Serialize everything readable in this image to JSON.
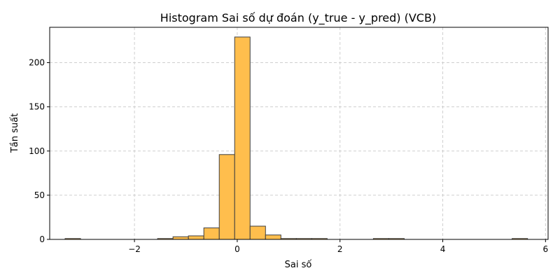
{
  "chart_data": {
    "type": "bar",
    "title": "Histogram Sai số dự đoán (y_true - y_pred) (VCB)",
    "xlabel": "Sai số",
    "ylabel": "Tần suất",
    "xlim": [
      -3.65,
      6.05
    ],
    "ylim": [
      0,
      240
    ],
    "xticks": [
      -2,
      0,
      2,
      4,
      6
    ],
    "xtick_labels": [
      "−2",
      "0",
      "2",
      "4",
      "6"
    ],
    "yticks": [
      0,
      50,
      100,
      150,
      200
    ],
    "ytick_labels": [
      "0",
      "50",
      "100",
      "150",
      "200"
    ],
    "grid": true,
    "bar_color": "#ffbe4d",
    "edge_color": "#3f3f3f",
    "bins": [
      {
        "x0": -3.35,
        "x1": -3.05,
        "count": 1
      },
      {
        "x0": -1.55,
        "x1": -1.25,
        "count": 1
      },
      {
        "x0": -1.25,
        "x1": -0.95,
        "count": 3
      },
      {
        "x0": -0.95,
        "x1": -0.65,
        "count": 4
      },
      {
        "x0": -0.65,
        "x1": -0.35,
        "count": 13
      },
      {
        "x0": -0.35,
        "x1": -0.05,
        "count": 96
      },
      {
        "x0": -0.05,
        "x1": 0.25,
        "count": 229
      },
      {
        "x0": 0.25,
        "x1": 0.55,
        "count": 15
      },
      {
        "x0": 0.55,
        "x1": 0.85,
        "count": 5
      },
      {
        "x0": 0.85,
        "x1": 1.15,
        "count": 1
      },
      {
        "x0": 1.15,
        "x1": 1.45,
        "count": 1
      },
      {
        "x0": 1.45,
        "x1": 1.75,
        "count": 1
      },
      {
        "x0": 2.65,
        "x1": 2.95,
        "count": 1
      },
      {
        "x0": 2.95,
        "x1": 3.25,
        "count": 1
      },
      {
        "x0": 5.35,
        "x1": 5.65,
        "count": 1
      }
    ]
  }
}
